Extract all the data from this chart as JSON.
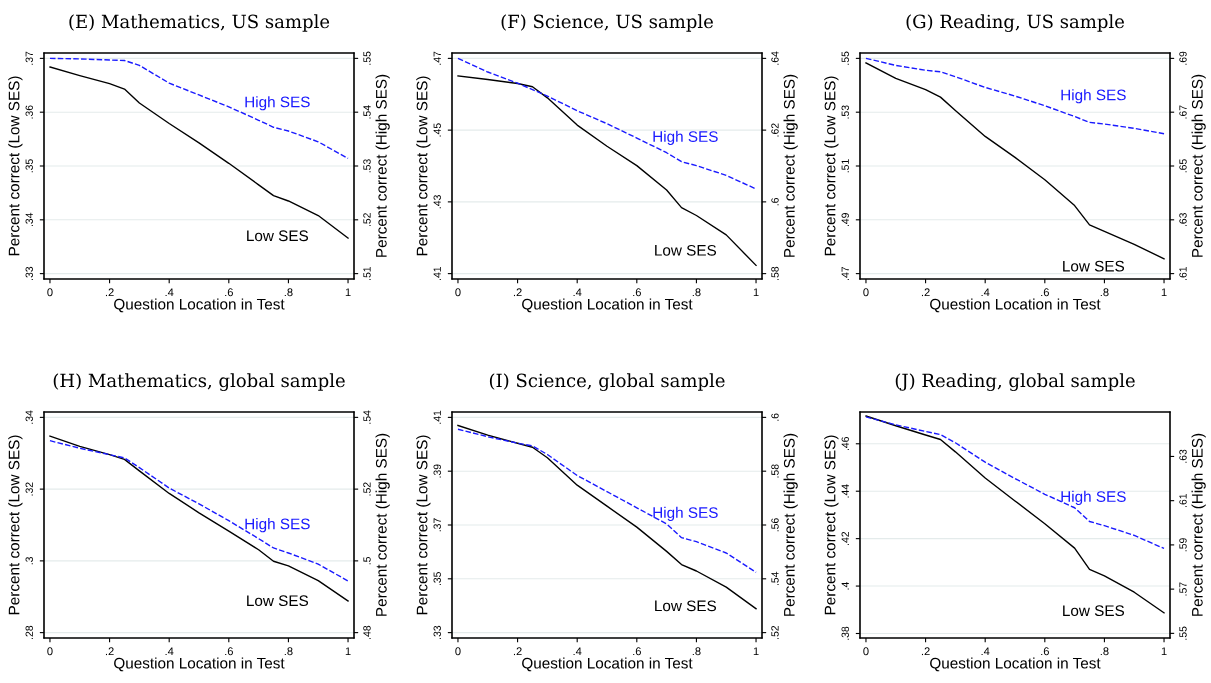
{
  "chart_data": [
    {
      "type": "line",
      "title": "(E) Mathematics, US sample",
      "xlabel": "Question Location in Test",
      "ylabel": "Percent correct (Low SES)",
      "y2label": "Percent correct (High SES)",
      "x": [
        0,
        0.1,
        0.2,
        0.25,
        0.3,
        0.4,
        0.5,
        0.6,
        0.7,
        0.75,
        0.8,
        0.9,
        1
      ],
      "series": [
        {
          "name": "Low SES",
          "color": "#000000",
          "line_style": "solid",
          "values": [
            0.3684,
            0.3668,
            0.3653,
            0.3643,
            0.3617,
            0.3579,
            0.3543,
            0.3505,
            0.3465,
            0.3445,
            0.3435,
            0.3408,
            0.3366
          ]
        },
        {
          "name": "High SES",
          "color": "#1a1aff",
          "line_style": "dashed",
          "axis": "y2",
          "values": [
            0.55,
            0.5499,
            0.5497,
            0.5496,
            0.5487,
            0.5454,
            0.5432,
            0.541,
            0.5385,
            0.5372,
            0.5365,
            0.5345,
            0.5314
          ]
        }
      ],
      "xlim": [
        -0.02,
        1.02
      ],
      "xticks": [
        0,
        {
          "value": 0.2,
          "label": ".2"
        },
        {
          "value": 0.4,
          "label": ".4"
        },
        {
          "value": 0.6,
          "label": ".6"
        },
        {
          "value": 0.8,
          "label": ".8"
        },
        1
      ],
      "ylim": [
        0.329,
        0.371
      ],
      "yticks": [
        {
          "value": 0.33,
          "label": ".33"
        },
        {
          "value": 0.34,
          "label": ".34"
        },
        {
          "value": 0.35,
          "label": ".35"
        },
        {
          "value": 0.36,
          "label": ".36"
        },
        {
          "value": 0.37,
          "label": ".37"
        }
      ],
      "y2lim": [
        0.509,
        0.551
      ],
      "y2ticks": [
        {
          "value": 0.51,
          "label": ".51"
        },
        {
          "value": 0.52,
          "label": ".52"
        },
        {
          "value": 0.53,
          "label": ".53"
        },
        {
          "value": 0.54,
          "label": ".54"
        },
        {
          "value": 0.55,
          "label": ".55"
        }
      ],
      "grid": "y",
      "legend": false
    },
    {
      "type": "line",
      "title": "(F) Science, US sample",
      "xlabel": "Question Location in Test",
      "ylabel": "Percent correct (Low SES)",
      "y2label": "Percent correct (High SES)",
      "x": [
        0,
        0.1,
        0.2,
        0.25,
        0.3,
        0.4,
        0.5,
        0.6,
        0.7,
        0.75,
        0.8,
        0.9,
        1
      ],
      "series": [
        {
          "name": "Low SES",
          "color": "#000000",
          "line_style": "solid",
          "values": [
            0.4651,
            0.4641,
            0.463,
            0.4621,
            0.459,
            0.4514,
            0.4455,
            0.4401,
            0.4333,
            0.4284,
            0.4262,
            0.4208,
            0.4123
          ]
        },
        {
          "name": "High SES",
          "color": "#1a1aff",
          "line_style": "dashed",
          "axis": "y2",
          "values": [
            0.64,
            0.6362,
            0.6331,
            0.6313,
            0.6295,
            0.6254,
            0.6218,
            0.6178,
            0.6137,
            0.6112,
            0.6101,
            0.6074,
            0.6036
          ]
        }
      ],
      "xlim": [
        -0.02,
        1.02
      ],
      "xticks": [
        0,
        {
          "value": 0.2,
          "label": ".2"
        },
        {
          "value": 0.4,
          "label": ".4"
        },
        {
          "value": 0.6,
          "label": ".6"
        },
        {
          "value": 0.8,
          "label": ".8"
        },
        1
      ],
      "ylim": [
        0.4085,
        0.4715
      ],
      "yticks": [
        {
          "value": 0.41,
          "label": ".41"
        },
        {
          "value": 0.43,
          "label": ".43"
        },
        {
          "value": 0.45,
          "label": ".45"
        },
        {
          "value": 0.47,
          "label": ".47"
        }
      ],
      "y2lim": [
        0.5785,
        0.6415
      ],
      "y2ticks": [
        {
          "value": 0.58,
          "label": ".58"
        },
        {
          "value": 0.6,
          "label": ".6"
        },
        {
          "value": 0.62,
          "label": ".62"
        },
        {
          "value": 0.64,
          "label": ".64"
        }
      ],
      "grid": "y",
      "legend": false
    },
    {
      "type": "line",
      "title": "(G) Reading, US sample",
      "xlabel": "Question Location in Test",
      "ylabel": "Percent correct (Low SES)",
      "y2label": "Percent correct (High SES)",
      "x": [
        0,
        0.1,
        0.2,
        0.25,
        0.3,
        0.4,
        0.5,
        0.6,
        0.7,
        0.75,
        0.8,
        0.9,
        1
      ],
      "series": [
        {
          "name": "Low SES",
          "color": "#000000",
          "line_style": "solid",
          "values": [
            0.5483,
            0.5426,
            0.5384,
            0.5356,
            0.5306,
            0.521,
            0.5132,
            0.5049,
            0.4953,
            0.4881,
            0.4857,
            0.4809,
            0.4755
          ]
        },
        {
          "name": "High SES",
          "color": "#1a1aff",
          "line_style": "dashed",
          "axis": "y2",
          "values": [
            0.69,
            0.6874,
            0.6856,
            0.685,
            0.6832,
            0.6792,
            0.676,
            0.6724,
            0.6684,
            0.6662,
            0.6656,
            0.664,
            0.662
          ]
        }
      ],
      "xlim": [
        -0.02,
        1.02
      ],
      "xticks": [
        0,
        {
          "value": 0.2,
          "label": ".2"
        },
        {
          "value": 0.4,
          "label": ".4"
        },
        {
          "value": 0.6,
          "label": ".6"
        },
        {
          "value": 0.8,
          "label": ".8"
        },
        1
      ],
      "ylim": [
        0.468,
        0.552
      ],
      "yticks": [
        {
          "value": 0.47,
          "label": ".47"
        },
        {
          "value": 0.49,
          "label": ".49"
        },
        {
          "value": 0.51,
          "label": ".51"
        },
        {
          "value": 0.53,
          "label": ".53"
        },
        {
          "value": 0.55,
          "label": ".55"
        }
      ],
      "y2lim": [
        0.608,
        0.692
      ],
      "y2ticks": [
        {
          "value": 0.61,
          "label": ".61"
        },
        {
          "value": 0.63,
          "label": ".63"
        },
        {
          "value": 0.65,
          "label": ".65"
        },
        {
          "value": 0.67,
          "label": ".67"
        },
        {
          "value": 0.69,
          "label": ".69"
        }
      ],
      "grid": "y",
      "legend": false
    },
    {
      "type": "line",
      "title": "(H) Mathematics, global sample",
      "xlabel": "Question Location in Test",
      "ylabel": "Percent correct (Low SES)",
      "y2label": "Percent correct (High SES)",
      "x": [
        0,
        0.1,
        0.2,
        0.25,
        0.3,
        0.4,
        0.5,
        0.6,
        0.7,
        0.75,
        0.8,
        0.9,
        1
      ],
      "series": [
        {
          "name": "Low SES",
          "color": "#000000",
          "line_style": "solid",
          "values": [
            0.3348,
            0.3319,
            0.3296,
            0.3283,
            0.3251,
            0.3188,
            0.3134,
            0.3083,
            0.3031,
            0.2999,
            0.2986,
            0.2945,
            0.2888
          ]
        },
        {
          "name": "High SES",
          "color": "#1a1aff",
          "line_style": "dashed",
          "axis": "y2",
          "values": [
            0.5335,
            0.5314,
            0.5296,
            0.5287,
            0.526,
            0.5203,
            0.5159,
            0.5112,
            0.5062,
            0.5036,
            0.5022,
            0.4991,
            0.4944
          ]
        }
      ],
      "xlim": [
        -0.02,
        1.02
      ],
      "xticks": [
        0,
        {
          "value": 0.2,
          "label": ".2"
        },
        {
          "value": 0.4,
          "label": ".4"
        },
        {
          "value": 0.6,
          "label": ".6"
        },
        {
          "value": 0.8,
          "label": ".8"
        },
        1
      ],
      "ylim": [
        0.2785,
        0.3415
      ],
      "yticks": [
        {
          "value": 0.28,
          "label": ".28"
        },
        {
          "value": 0.3,
          "label": ".3"
        },
        {
          "value": 0.32,
          "label": ".32"
        },
        {
          "value": 0.34,
          "label": ".34"
        }
      ],
      "y2lim": [
        0.4785,
        0.5415
      ],
      "y2ticks": [
        {
          "value": 0.48,
          "label": ".48"
        },
        {
          "value": 0.5,
          "label": ".5"
        },
        {
          "value": 0.52,
          "label": ".52"
        },
        {
          "value": 0.54,
          "label": ".54"
        }
      ],
      "grid": "y",
      "legend": false
    },
    {
      "type": "line",
      "title": "(I) Science, global sample",
      "xlabel": "Question Location in Test",
      "ylabel": "Percent correct (Low SES)",
      "y2label": "Percent correct (High SES)",
      "x": [
        0,
        0.1,
        0.2,
        0.25,
        0.3,
        0.4,
        0.5,
        0.6,
        0.7,
        0.75,
        0.8,
        0.9,
        1
      ],
      "series": [
        {
          "name": "Low SES",
          "color": "#000000",
          "line_style": "solid",
          "values": [
            0.407,
            0.4034,
            0.4004,
            0.3989,
            0.395,
            0.3848,
            0.377,
            0.3692,
            0.3602,
            0.3553,
            0.3529,
            0.3469,
            0.3389
          ]
        },
        {
          "name": "High SES",
          "color": "#1a1aff",
          "line_style": "dashed",
          "axis": "y2",
          "values": [
            0.5956,
            0.5928,
            0.5904,
            0.5894,
            0.5862,
            0.5784,
            0.5724,
            0.5664,
            0.5604,
            0.5553,
            0.5538,
            0.5496,
            0.5424
          ]
        }
      ],
      "xlim": [
        -0.02,
        1.02
      ],
      "xticks": [
        0,
        {
          "value": 0.2,
          "label": ".2"
        },
        {
          "value": 0.4,
          "label": ".4"
        },
        {
          "value": 0.6,
          "label": ".6"
        },
        {
          "value": 0.8,
          "label": ".8"
        },
        1
      ],
      "ylim": [
        0.328,
        0.412
      ],
      "yticks": [
        {
          "value": 0.33,
          "label": ".33"
        },
        {
          "value": 0.35,
          "label": ".35"
        },
        {
          "value": 0.37,
          "label": ".37"
        },
        {
          "value": 0.39,
          "label": ".39"
        },
        {
          "value": 0.41,
          "label": ".41"
        }
      ],
      "y2lim": [
        0.518,
        0.602
      ],
      "y2ticks": [
        {
          "value": 0.52,
          "label": ".52"
        },
        {
          "value": 0.54,
          "label": ".54"
        },
        {
          "value": 0.56,
          "label": ".56"
        },
        {
          "value": 0.58,
          "label": ".58"
        },
        {
          "value": 0.6,
          "label": ".6"
        }
      ],
      "grid": "y",
      "legend": false
    },
    {
      "type": "line",
      "title": "(J) Reading, global sample",
      "xlabel": "Question Location in Test",
      "ylabel": "Percent correct (Low SES)",
      "y2label": "Percent correct (High SES)",
      "x": [
        0,
        0.1,
        0.2,
        0.25,
        0.3,
        0.4,
        0.5,
        0.6,
        0.7,
        0.75,
        0.8,
        0.9,
        1
      ],
      "series": [
        {
          "name": "Low SES",
          "color": "#000000",
          "line_style": "solid",
          "values": [
            0.4717,
            0.4676,
            0.4637,
            0.4618,
            0.4566,
            0.4456,
            0.4359,
            0.4263,
            0.416,
            0.407,
            0.4043,
            0.3974,
            0.3887
          ]
        },
        {
          "name": "High SES",
          "color": "#1a1aff",
          "line_style": "dashed",
          "axis": "y2",
          "values": [
            0.6479,
            0.6443,
            0.6413,
            0.6399,
            0.6362,
            0.6274,
            0.62,
            0.6129,
            0.6068,
            0.6006,
            0.5987,
            0.5943,
            0.5884
          ]
        }
      ],
      "xlim": [
        -0.02,
        1.02
      ],
      "xticks": [
        0,
        {
          "value": 0.2,
          "label": ".2"
        },
        {
          "value": 0.4,
          "label": ".4"
        },
        {
          "value": 0.6,
          "label": ".6"
        },
        {
          "value": 0.8,
          "label": ".8"
        },
        1
      ],
      "ylim": [
        0.3781,
        0.4734
      ],
      "yticks": [
        {
          "value": 0.38,
          "label": ".38"
        },
        {
          "value": 0.4,
          "label": ".4"
        },
        {
          "value": 0.42,
          "label": ".42"
        },
        {
          "value": 0.44,
          "label": ".44"
        },
        {
          "value": 0.46,
          "label": ".46"
        }
      ],
      "y2lim": [
        0.5479,
        0.6501
      ],
      "y2ticks": [
        {
          "value": 0.55,
          "label": ".55"
        },
        {
          "value": 0.57,
          "label": ".57"
        },
        {
          "value": 0.59,
          "label": ".59"
        },
        {
          "value": 0.61,
          "label": ".61"
        },
        {
          "value": 0.63,
          "label": ".63"
        }
      ],
      "grid": "y",
      "legend": false
    }
  ]
}
